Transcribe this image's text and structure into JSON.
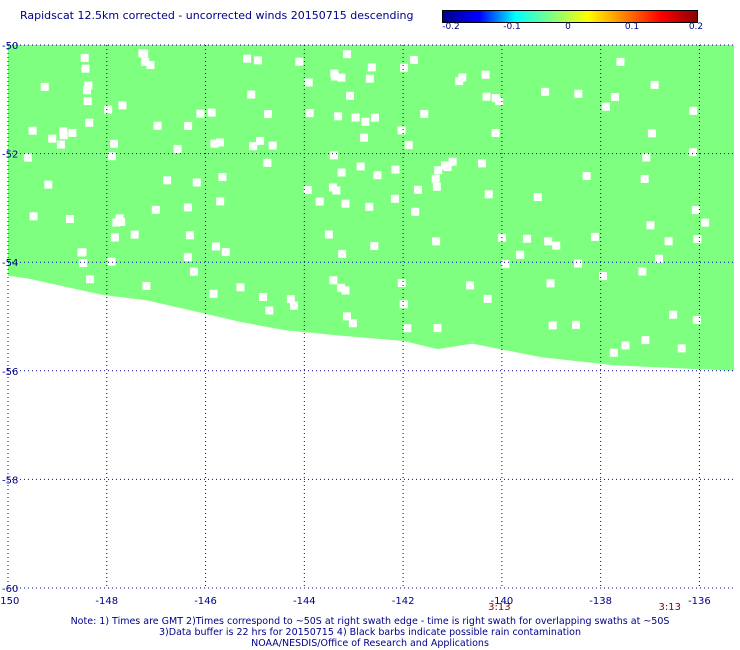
{
  "title": "Rapidscat 12.5km corrected - uncorrected winds 20150715 descending",
  "colorbar": {
    "labels": [
      "-0.2",
      "-0.1",
      "0",
      "0.1",
      "0.2"
    ],
    "stops": [
      "#00008b",
      "#0000ff",
      "#00ffff",
      "#7fff7f",
      "#ffff00",
      "#ff8000",
      "#ff0000",
      "#8b0000"
    ]
  },
  "colors": {
    "swath": "#7fff7f",
    "grid": "#00008b",
    "background": "#ffffff",
    "time": "#8b0000"
  },
  "map": {
    "lon_range": [
      -150,
      -135.3
    ],
    "lat_range": [
      -60,
      -50
    ],
    "lon_ticks": [
      "-150",
      "-148",
      "-146",
      "-144",
      "-142",
      "-140",
      "-138",
      "-136"
    ],
    "lat_ticks": [
      "-50",
      "-52",
      "-54",
      "-56",
      "-58",
      "-60"
    ],
    "swath_fill_value": "0",
    "swath_southern_edge": [
      [
        -150,
        -54.25
      ],
      [
        -149.6,
        -54.3
      ],
      [
        -148.1,
        -54.6
      ],
      [
        -147.2,
        -54.7
      ],
      [
        -146.0,
        -54.95
      ],
      [
        -145.3,
        -55.1
      ],
      [
        -144.4,
        -55.25
      ],
      [
        -143.3,
        -55.35
      ],
      [
        -142.0,
        -55.45
      ],
      [
        -141.3,
        -55.6
      ],
      [
        -140.6,
        -55.5
      ],
      [
        -139.2,
        -55.75
      ],
      [
        -137.7,
        -55.9
      ],
      [
        -136.5,
        -55.95
      ],
      [
        -135.3,
        -56.0
      ]
    ],
    "times": [
      {
        "label": "3:13",
        "lon": -140.05
      },
      {
        "label": "3:13",
        "lon": -136.6
      }
    ]
  },
  "notes": [
    "Note: 1) Times are GMT 2)Times correspond to ~50S at right swath edge - time is right swath for overlapping swaths at ~50S",
    "3)Data buffer is 22 hrs for 20150715 4) Black barbs indicate possible rain contamination",
    "NOAA/NESDIS/Office of Research and Applications"
  ]
}
